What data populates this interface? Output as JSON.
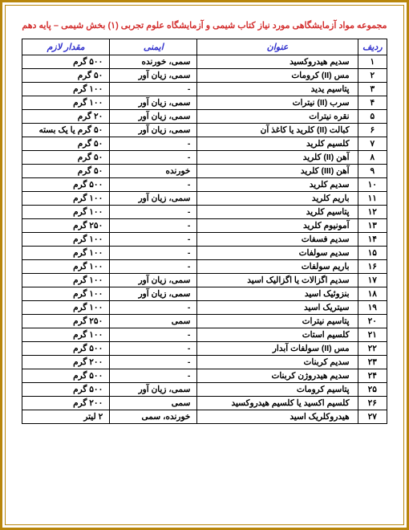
{
  "header_title": "مجموعه مواد آزمایشگاهی مورد نیاز کتاب شیمی و آزمایشگاه علوم تجربی (۱) بخش شیمی – پایه دهم",
  "columns": {
    "row": "ردیف",
    "title": "عنوان",
    "safety": "ایمنی",
    "amount": "مقدار لازم"
  },
  "rows": [
    {
      "n": "۱",
      "title": "سدیم هیدروکسید",
      "safety": "سمی، خورنده",
      "amount": "۵۰۰ گرم"
    },
    {
      "n": "۲",
      "title": "مس (II) کرومات",
      "safety": "سمی، زیان آور",
      "amount": "۵۰ گرم"
    },
    {
      "n": "۳",
      "title": "پتاسیم یدید",
      "safety": "-",
      "amount": "۱۰۰ گرم"
    },
    {
      "n": "۴",
      "title": "سرب (II) نیترات",
      "safety": "سمی، زیان آور",
      "amount": "۱۰۰ گرم"
    },
    {
      "n": "۵",
      "title": "نقره نیترات",
      "safety": "سمی، زیان آور",
      "amount": "۲۰ گرم"
    },
    {
      "n": "۶",
      "title": "کبالت (II) کلرید یا کاغذ آن",
      "safety": "سمی، زیان آور",
      "amount": "۵۰ گرم یا یک بسته"
    },
    {
      "n": "۷",
      "title": "کلسیم کلرید",
      "safety": "-",
      "amount": "۵۰ گرم"
    },
    {
      "n": "۸",
      "title": "آهن (II) کلرید",
      "safety": "-",
      "amount": "۵۰ گرم"
    },
    {
      "n": "۹",
      "title": "آهن (III) کلرید",
      "safety": "خورنده",
      "amount": "۵۰ گرم"
    },
    {
      "n": "۱۰",
      "title": "سدیم کلرید",
      "safety": "-",
      "amount": "۵۰۰ گرم"
    },
    {
      "n": "۱۱",
      "title": "باریم کلرید",
      "safety": "سمی، زیان آور",
      "amount": "۱۰۰ گرم"
    },
    {
      "n": "۱۲",
      "title": "پتاسیم کلرید",
      "safety": "-",
      "amount": "۱۰۰ گرم"
    },
    {
      "n": "۱۳",
      "title": "آمونیوم کلرید",
      "safety": "-",
      "amount": "۲۵۰ گرم"
    },
    {
      "n": "۱۴",
      "title": "سدیم فسفات",
      "safety": "-",
      "amount": "۱۰۰ گرم"
    },
    {
      "n": "۱۵",
      "title": "سدیم سولفات",
      "safety": "-",
      "amount": "۱۰۰ گرم"
    },
    {
      "n": "۱۶",
      "title": "باریم سولفات",
      "safety": "-",
      "amount": "۱۰۰ گرم"
    },
    {
      "n": "۱۷",
      "title": "سدیم اگزالات یا اگزالیک اسید",
      "safety": "سمی، زیان آور",
      "amount": "۱۰۰ گرم"
    },
    {
      "n": "۱۸",
      "title": "بنزوئیک اسید",
      "safety": "سمی، زیان آور",
      "amount": "۱۰۰ گرم"
    },
    {
      "n": "۱۹",
      "title": "سیتریک اسید",
      "safety": "-",
      "amount": "۱۰۰ گرم"
    },
    {
      "n": "۲۰",
      "title": "پتاسیم نیترات",
      "safety": "سمی",
      "amount": "۲۵۰ گرم"
    },
    {
      "n": "۲۱",
      "title": "کلسیم استات",
      "safety": "-",
      "amount": "۱۰۰ گرم"
    },
    {
      "n": "۲۲",
      "title": "مس (II) سولفات آبدار",
      "safety": "-",
      "amount": "۵۰۰ گرم"
    },
    {
      "n": "۲۳",
      "title": "سدیم کربنات",
      "safety": "-",
      "amount": "۲۰۰ گرم"
    },
    {
      "n": "۲۴",
      "title": "سدیم هیدروژن کربنات",
      "safety": "-",
      "amount": "۵۰۰ گرم"
    },
    {
      "n": "۲۵",
      "title": "پتاسیم کرومات",
      "safety": "سمی، زیان آور",
      "amount": "۵۰۰ گرم"
    },
    {
      "n": "۲۶",
      "title": "کلسیم اکسید یا کلسیم هیدروکسید",
      "safety": "سمی",
      "amount": "۲۰۰ گرم"
    },
    {
      "n": "۲۷",
      "title": "هیدروکلریک اسید",
      "safety": "خورنده، سمی",
      "amount": "۲ لیتر"
    }
  ]
}
